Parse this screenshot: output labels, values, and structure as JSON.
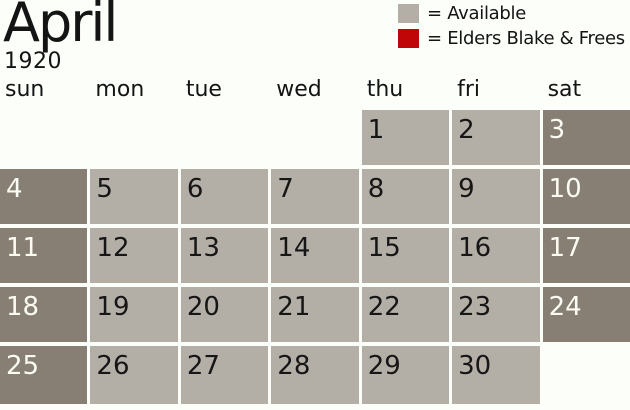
{
  "page": {
    "background": "#fcfefa",
    "text_color": "#141414"
  },
  "title": {
    "month": "April",
    "year": "1920"
  },
  "legend": {
    "items": [
      {
        "name": "available",
        "color": "#b4afa6",
        "label": "= Available"
      },
      {
        "name": "elders-blake-frees",
        "color": "#c00606",
        "label": "= Elders Blake & Frees"
      }
    ]
  },
  "weekdays": [
    "sun",
    "mon",
    "tue",
    "wed",
    "thu",
    "fri",
    "sat"
  ],
  "calendar": {
    "month_number": 4,
    "weeks": [
      [
        "",
        "",
        "",
        "",
        "1",
        "2",
        "3"
      ],
      [
        "4",
        "5",
        "6",
        "7",
        "8",
        "9",
        "10"
      ],
      [
        "11",
        "12",
        "13",
        "14",
        "15",
        "16",
        "17"
      ],
      [
        "18",
        "19",
        "20",
        "21",
        "22",
        "23",
        "24"
      ],
      [
        "25",
        "26",
        "27",
        "28",
        "29",
        "30",
        ""
      ]
    ],
    "cell_colors": {
      "weekday_available": "#b4afa6",
      "weekend_available": "#877f73",
      "empty": "transparent"
    },
    "number_colors": {
      "weekday": "#161616",
      "weekend": "#fbfbf3"
    }
  }
}
